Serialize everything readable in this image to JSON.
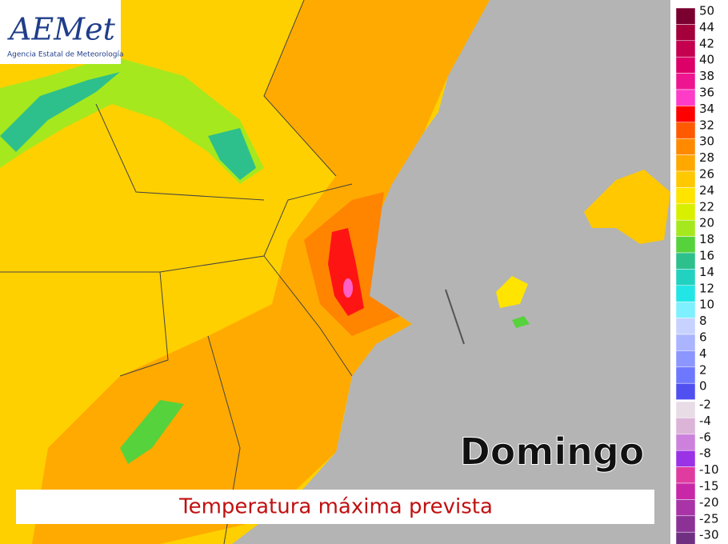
{
  "logo": {
    "name": "AEMet",
    "subtitle": "Agencia Estatal de Meteorología"
  },
  "day": "Domingo",
  "caption": "Temperatura máxima prevista",
  "legend": {
    "positive": [
      {
        "label": "50",
        "color": "#7a0030"
      },
      {
        "label": "44",
        "color": "#a3003c"
      },
      {
        "label": "42",
        "color": "#c4004f"
      },
      {
        "label": "40",
        "color": "#dc0068"
      },
      {
        "label": "38",
        "color": "#ee1590"
      },
      {
        "label": "36",
        "color": "#ff3cc8"
      },
      {
        "label": "34",
        "color": "#ff0000"
      },
      {
        "label": "32",
        "color": "#ff5a00"
      },
      {
        "label": "30",
        "color": "#ff8a00"
      },
      {
        "label": "28",
        "color": "#ffa800"
      },
      {
        "label": "26",
        "color": "#ffc800"
      },
      {
        "label": "24",
        "color": "#ffe400"
      },
      {
        "label": "22",
        "color": "#d8f000"
      },
      {
        "label": "20",
        "color": "#a6e81e"
      },
      {
        "label": "18",
        "color": "#56d23c"
      },
      {
        "label": "16",
        "color": "#2ec08c"
      },
      {
        "label": "14",
        "color": "#22d2c0"
      },
      {
        "label": "12",
        "color": "#22e6e6"
      },
      {
        "label": "10",
        "color": "#7ef0ff"
      },
      {
        "label": "8",
        "color": "#c8d2ff"
      },
      {
        "label": "6",
        "color": "#aab4ff"
      },
      {
        "label": "4",
        "color": "#8c96ff"
      },
      {
        "label": "2",
        "color": "#6e78ff"
      },
      {
        "label": "0",
        "color": "#5050f0"
      }
    ],
    "negative": [
      {
        "label": "-2",
        "color": "#e8dce6"
      },
      {
        "label": "-4",
        "color": "#dcb4d8"
      },
      {
        "label": "-6",
        "color": "#cc82dc"
      },
      {
        "label": "-8",
        "color": "#9a32e6"
      },
      {
        "label": "-10",
        "color": "#e03ca0"
      },
      {
        "label": "-15",
        "color": "#c828a8"
      },
      {
        "label": "-20",
        "color": "#a834a8"
      },
      {
        "label": "-25",
        "color": "#8c3296"
      },
      {
        "label": "-30",
        "color": "#703082"
      }
    ]
  }
}
